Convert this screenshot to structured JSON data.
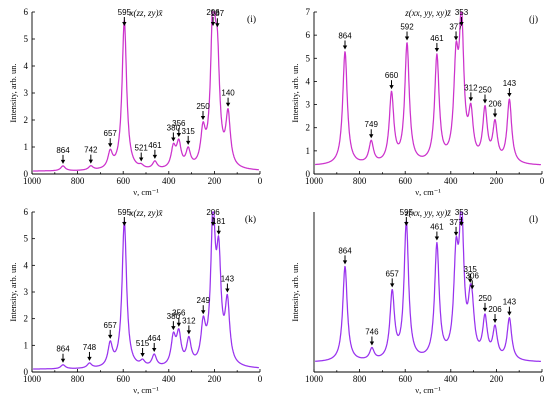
{
  "chart_data": [
    {
      "type": "line",
      "title": "x(zz, zy)x̄",
      "panel_label": "(i)",
      "xlabel": "ν, cm⁻¹",
      "ylabel": "Intensity, arb. un.",
      "xlim": [
        1000,
        0
      ],
      "ylim": [
        0,
        6
      ],
      "xticks": [
        1000,
        800,
        600,
        400,
        200,
        0
      ],
      "yticks": [
        0,
        1,
        2,
        3,
        4,
        5,
        6
      ],
      "line_color": "#cc33cc",
      "baseline": 0.1,
      "peaks": [
        {
          "x": 864,
          "y": 0.28,
          "label": "864"
        },
        {
          "x": 742,
          "y": 0.25,
          "label": "742"
        },
        {
          "x": 657,
          "y": 0.7,
          "label": "657"
        },
        {
          "x": 595,
          "y": 5.65,
          "label": "595"
        },
        {
          "x": 521,
          "y": 0.2,
          "label": "521"
        },
        {
          "x": 461,
          "y": 0.38,
          "label": "461"
        },
        {
          "x": 380,
          "y": 0.85,
          "label": "380"
        },
        {
          "x": 356,
          "y": 1.0,
          "label": "356"
        },
        {
          "x": 315,
          "y": 0.75,
          "label": "315"
        },
        {
          "x": 250,
          "y": 1.35,
          "label": "250"
        },
        {
          "x": 206,
          "y": 5.65,
          "label": "206"
        },
        {
          "x": 187,
          "y": 3.6,
          "label": "187"
        },
        {
          "x": 140,
          "y": 2.0,
          "label": "140"
        }
      ]
    },
    {
      "type": "line",
      "title": "z(xx, yy, xy)z̄",
      "panel_label": "(j)",
      "xlabel": "ν, cm⁻¹",
      "ylabel": "Intensity, arb. un.",
      "xlim": [
        1000,
        0
      ],
      "ylim": [
        0,
        7
      ],
      "xticks": [
        1000,
        800,
        600,
        400,
        200,
        0
      ],
      "yticks": [
        0,
        1,
        2,
        3,
        4,
        5,
        6,
        7
      ],
      "line_color": "#cc33cc",
      "baseline": 0.35,
      "peaks": [
        {
          "x": 864,
          "y": 5.25,
          "label": "864"
        },
        {
          "x": 749,
          "y": 1.3,
          "label": "749"
        },
        {
          "x": 660,
          "y": 3.35,
          "label": "660"
        },
        {
          "x": 592,
          "y": 5.5,
          "label": "592"
        },
        {
          "x": 461,
          "y": 4.95,
          "label": "461"
        },
        {
          "x": 377,
          "y": 4.3,
          "label": "377"
        },
        {
          "x": 353,
          "y": 6.2,
          "label": "353"
        },
        {
          "x": 312,
          "y": 2.3,
          "label": "312"
        },
        {
          "x": 250,
          "y": 2.6,
          "label": "250"
        },
        {
          "x": 206,
          "y": 2.0,
          "label": "206"
        },
        {
          "x": 143,
          "y": 3.1,
          "label": "143"
        }
      ]
    },
    {
      "type": "line",
      "title": "x(zz, zy)x̄",
      "panel_label": "(k)",
      "xlabel": "ν, cm⁻¹",
      "ylabel": "Intensity, arb. un.",
      "xlim": [
        1000,
        0
      ],
      "ylim": [
        0,
        6
      ],
      "xticks": [
        1000,
        800,
        600,
        400,
        200,
        0
      ],
      "yticks": [
        0,
        1,
        2,
        3,
        4,
        5,
        6
      ],
      "line_color": "#9933ee",
      "baseline": 0.1,
      "peaks": [
        {
          "x": 864,
          "y": 0.25,
          "label": "864"
        },
        {
          "x": 748,
          "y": 0.28,
          "label": "748"
        },
        {
          "x": 657,
          "y": 0.95,
          "label": "657"
        },
        {
          "x": 595,
          "y": 5.6,
          "label": "595"
        },
        {
          "x": 515,
          "y": 0.3,
          "label": "515"
        },
        {
          "x": 464,
          "y": 0.55,
          "label": "464"
        },
        {
          "x": 380,
          "y": 1.15,
          "label": "380"
        },
        {
          "x": 356,
          "y": 1.25,
          "label": "356"
        },
        {
          "x": 312,
          "y": 1.05,
          "label": "312"
        },
        {
          "x": 249,
          "y": 1.5,
          "label": "249"
        },
        {
          "x": 206,
          "y": 5.45,
          "label": "206"
        },
        {
          "x": 181,
          "y": 3.8,
          "label": "181"
        },
        {
          "x": 143,
          "y": 2.35,
          "label": "143"
        }
      ]
    },
    {
      "type": "line",
      "title": "z(xx, yy, xy)z̄",
      "panel_label": "(l)",
      "xlabel": "ν, cm⁻¹",
      "ylabel": "Intensity, arb. un.",
      "xlim": [
        1000,
        0
      ],
      "ylim": [
        0.5,
        4.7
      ],
      "xticks": [
        1000,
        800,
        600,
        400,
        200,
        0
      ],
      "yticks": [],
      "line_color": "#9933ee",
      "baseline": 0.75,
      "peaks": [
        {
          "x": 864,
          "y": 3.25,
          "label": "864"
        },
        {
          "x": 746,
          "y": 1.05,
          "label": "746"
        },
        {
          "x": 657,
          "y": 2.5,
          "label": "657"
        },
        {
          "x": 595,
          "y": 4.35,
          "label": "595"
        },
        {
          "x": 461,
          "y": 3.75,
          "label": "461"
        },
        {
          "x": 377,
          "y": 3.15,
          "label": "377"
        },
        {
          "x": 353,
          "y": 4.35,
          "label": "353"
        },
        {
          "x": 315,
          "y": 1.75,
          "label": "315"
        },
        {
          "x": 306,
          "y": 1.6,
          "label": "306"
        },
        {
          "x": 250,
          "y": 1.8,
          "label": "250"
        },
        {
          "x": 206,
          "y": 1.55,
          "label": "206"
        },
        {
          "x": 143,
          "y": 1.85,
          "label": "143"
        }
      ]
    }
  ]
}
